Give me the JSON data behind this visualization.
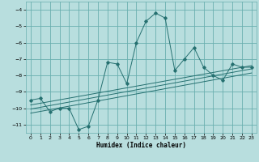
{
  "xlabel": "Humidex (Indice chaleur)",
  "xlim": [
    -0.5,
    23.5
  ],
  "ylim": [
    -11.5,
    -3.5
  ],
  "yticks": [
    -11,
    -10,
    -9,
    -8,
    -7,
    -6,
    -5,
    -4
  ],
  "xticks": [
    0,
    1,
    2,
    3,
    4,
    5,
    6,
    7,
    8,
    9,
    10,
    11,
    12,
    13,
    14,
    15,
    16,
    17,
    18,
    19,
    20,
    21,
    22,
    23
  ],
  "bg_color": "#b8dede",
  "grid_color": "#6aafaf",
  "line_color": "#257070",
  "main_x": [
    0,
    1,
    2,
    3,
    4,
    5,
    6,
    7,
    8,
    9,
    10,
    11,
    12,
    13,
    14,
    15,
    16,
    17,
    18,
    19,
    20,
    21,
    22,
    23
  ],
  "main_y": [
    -9.5,
    -9.4,
    -10.2,
    -10.0,
    -10.0,
    -11.3,
    -11.1,
    -9.5,
    -7.2,
    -7.3,
    -8.5,
    -6.0,
    -4.7,
    -4.2,
    -4.5,
    -7.7,
    -7.0,
    -6.3,
    -7.5,
    -8.0,
    -8.3,
    -7.3,
    -7.5,
    -7.5
  ],
  "trend1_x": [
    0,
    23
  ],
  "trend1_y": [
    -9.8,
    -7.4
  ],
  "trend2_x": [
    0,
    23
  ],
  "trend2_y": [
    -10.05,
    -7.6
  ],
  "trend3_x": [
    0,
    23
  ],
  "trend3_y": [
    -10.3,
    -7.85
  ]
}
